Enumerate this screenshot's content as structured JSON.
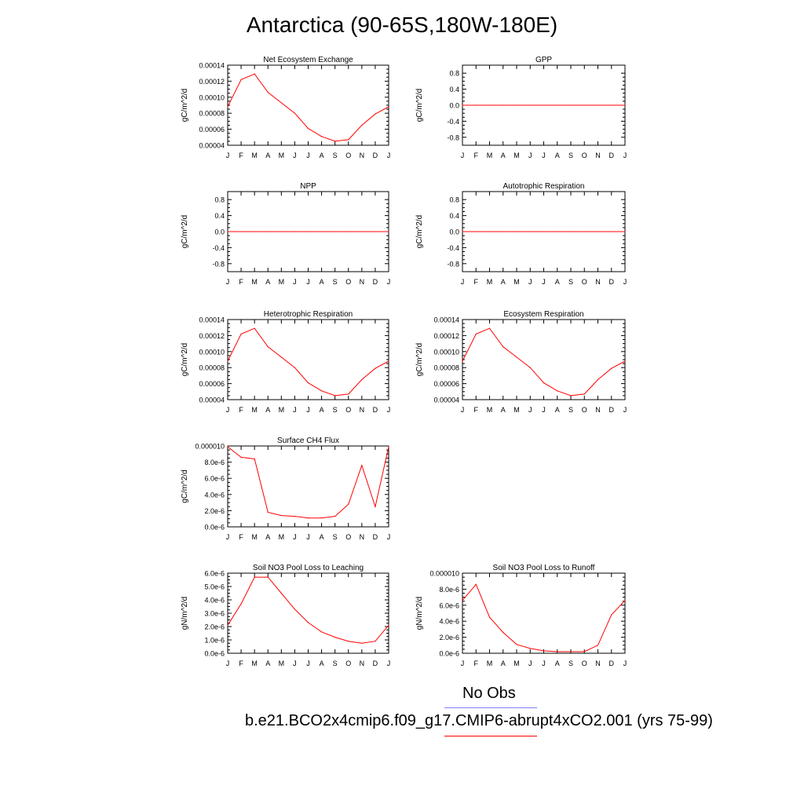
{
  "title": "Antarctica (90-65S,180W-180E)",
  "legend": {
    "obs_label": "No Obs",
    "model_label": "b.e21.BCO2x4cmip6.f09_g17.CMIP6-abrupt4xCO2.001 (yrs 75-99)",
    "obs_color": "#8080ff",
    "model_color": "#ff0000"
  },
  "colors": {
    "series": "#ff0000",
    "axis": "#000000"
  },
  "chart_data": [
    {
      "type": "line",
      "title": "Net Ecosystem Exchange",
      "ylabel": "gC/m^2/d",
      "x": [
        "J",
        "F",
        "M",
        "A",
        "M",
        "J",
        "J",
        "A",
        "S",
        "O",
        "N",
        "D",
        "J"
      ],
      "ylim": [
        4e-05,
        0.00014
      ],
      "yticks": [
        "0.00004",
        "0.00006",
        "0.00008",
        "0.00010",
        "0.00012",
        "0.00014"
      ],
      "values": [
        8.8e-05,
        0.000122,
        0.000129,
        0.000106,
        9.3e-05,
        8e-05,
        6.1e-05,
        5.1e-05,
        4.5e-05,
        4.7e-05,
        6.5e-05,
        7.9e-05,
        8.8e-05
      ]
    },
    {
      "type": "line",
      "title": "GPP",
      "ylabel": "gC/m^2/d",
      "x": [
        "J",
        "F",
        "M",
        "A",
        "M",
        "J",
        "J",
        "A",
        "S",
        "O",
        "N",
        "D",
        "J"
      ],
      "ylim": [
        -1,
        1
      ],
      "yticks": [
        "-0.8",
        "-0.4",
        "0.0",
        "0.4",
        "0.8"
      ],
      "values": [
        0,
        0,
        0,
        0,
        0,
        0,
        0,
        0,
        0,
        0,
        0,
        0,
        0
      ]
    },
    {
      "type": "line",
      "title": "NPP",
      "ylabel": "gC/m^2/d",
      "x": [
        "J",
        "F",
        "M",
        "A",
        "M",
        "J",
        "J",
        "A",
        "S",
        "O",
        "N",
        "D",
        "J"
      ],
      "ylim": [
        -1,
        1
      ],
      "yticks": [
        "-0.8",
        "-0.4",
        "0.0",
        "0.4",
        "0.8"
      ],
      "values": [
        0,
        0,
        0,
        0,
        0,
        0,
        0,
        0,
        0,
        0,
        0,
        0,
        0
      ]
    },
    {
      "type": "line",
      "title": "Autotrophic Respiration",
      "ylabel": "gC/m^2/d",
      "x": [
        "J",
        "F",
        "M",
        "A",
        "M",
        "J",
        "J",
        "A",
        "S",
        "O",
        "N",
        "D",
        "J"
      ],
      "ylim": [
        -1,
        1
      ],
      "yticks": [
        "-0.8",
        "-0.4",
        "0.0",
        "0.4",
        "0.8"
      ],
      "values": [
        0,
        0,
        0,
        0,
        0,
        0,
        0,
        0,
        0,
        0,
        0,
        0,
        0
      ]
    },
    {
      "type": "line",
      "title": "Heterotrophic Respiration",
      "ylabel": "gC/m^2/d",
      "x": [
        "J",
        "F",
        "M",
        "A",
        "M",
        "J",
        "J",
        "A",
        "S",
        "O",
        "N",
        "D",
        "J"
      ],
      "ylim": [
        4e-05,
        0.00014
      ],
      "yticks": [
        "0.00004",
        "0.00006",
        "0.00008",
        "0.00010",
        "0.00012",
        "0.00014"
      ],
      "values": [
        8.8e-05,
        0.000122,
        0.000129,
        0.000106,
        9.3e-05,
        8e-05,
        6.1e-05,
        5.1e-05,
        4.5e-05,
        4.7e-05,
        6.5e-05,
        7.9e-05,
        8.8e-05
      ]
    },
    {
      "type": "line",
      "title": "Ecosystem Respiration",
      "ylabel": "gC/m^2/d",
      "x": [
        "J",
        "F",
        "M",
        "A",
        "M",
        "J",
        "J",
        "A",
        "S",
        "O",
        "N",
        "D",
        "J"
      ],
      "ylim": [
        4e-05,
        0.00014
      ],
      "yticks": [
        "0.00004",
        "0.00006",
        "0.00008",
        "0.00010",
        "0.00012",
        "0.00014"
      ],
      "values": [
        8.8e-05,
        0.000122,
        0.000129,
        0.000106,
        9.3e-05,
        8e-05,
        6.1e-05,
        5.1e-05,
        4.5e-05,
        4.7e-05,
        6.5e-05,
        7.9e-05,
        8.8e-05
      ]
    },
    {
      "type": "line",
      "title": "Surface CH4 Flux",
      "ylabel": "gC/m^2/d",
      "x": [
        "J",
        "F",
        "M",
        "A",
        "M",
        "J",
        "J",
        "A",
        "S",
        "O",
        "N",
        "D",
        "J"
      ],
      "ylim": [
        0,
        1e-05
      ],
      "yticks": [
        "0.0e-6",
        "2.0e-6",
        "4.0e-6",
        "6.0e-6",
        "8.0e-6",
        "0.000010"
      ],
      "values": [
        9.9e-06,
        8.6e-06,
        8.4e-06,
        1.8e-06,
        1.4e-06,
        1.3e-06,
        1.1e-06,
        1.1e-06,
        1.3e-06,
        2.8e-06,
        7.6e-06,
        2.5e-06,
        9.9e-06
      ]
    },
    {
      "type": "line",
      "title": "Soil NO3 Pool Loss to Leaching",
      "ylabel": "gN/m^2/d",
      "x": [
        "J",
        "F",
        "M",
        "A",
        "M",
        "J",
        "J",
        "A",
        "S",
        "O",
        "N",
        "D",
        "J"
      ],
      "ylim": [
        0,
        6e-06
      ],
      "yticks": [
        "0.0e-6",
        "1.0e-6",
        "2.0e-6",
        "3.0e-6",
        "4.0e-6",
        "5.0e-6",
        "6.0e-6"
      ],
      "values": [
        2.1e-06,
        3.7e-06,
        5.7e-06,
        5.7e-06,
        4.5e-06,
        3.3e-06,
        2.3e-06,
        1.6e-06,
        1.2e-06,
        9e-07,
        7.5e-07,
        9e-07,
        2.1e-06
      ]
    },
    {
      "type": "line",
      "title": "Soil NO3 Pool Loss to Runoff",
      "ylabel": "gN/m^2/d",
      "x": [
        "J",
        "F",
        "M",
        "A",
        "M",
        "J",
        "J",
        "A",
        "S",
        "O",
        "N",
        "D",
        "J"
      ],
      "ylim": [
        0,
        1e-05
      ],
      "yticks": [
        "0.0e-6",
        "2.0e-6",
        "4.0e-6",
        "6.0e-6",
        "8.0e-6",
        "0.000010"
      ],
      "values": [
        6.6e-06,
        8.6e-06,
        4.5e-06,
        2.6e-06,
        1.1e-06,
        6e-07,
        3e-07,
        2e-07,
        2e-07,
        2e-07,
        1e-06,
        4.8e-06,
        6.6e-06
      ]
    }
  ]
}
